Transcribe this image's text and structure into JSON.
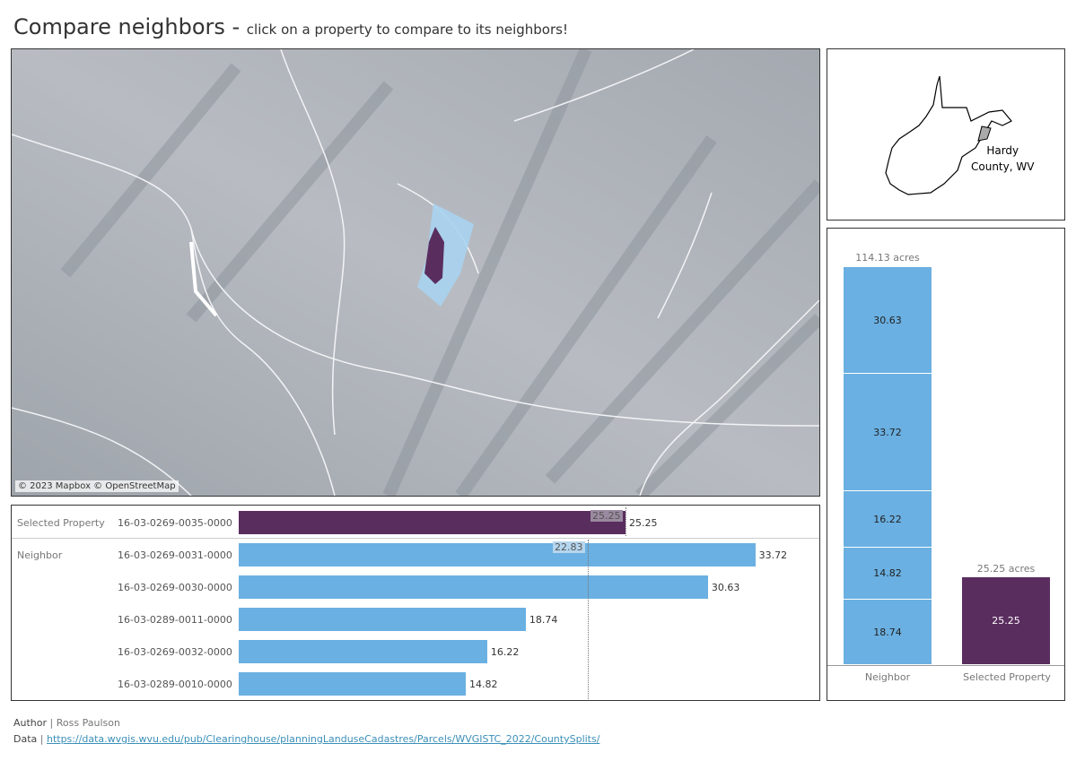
{
  "header": {
    "title": "Compare neighbors - ",
    "subtitle": "click on a property to compare to its neighbors!"
  },
  "map": {
    "attribution": "© 2023 Mapbox © OpenStreetMap",
    "selected_color": "#5a2d5f",
    "neighbor_color": "#a9d3ef"
  },
  "locator": {
    "label_line1": "Hardy",
    "label_line2": "County, WV"
  },
  "colors": {
    "selected": "#5a2d5f",
    "neighbor": "#6ab0e2"
  },
  "comparison": {
    "average_labels": {
      "selected": "25.25",
      "neighbor": "22.83"
    },
    "rows": [
      {
        "group": "Selected Property",
        "parcel": "16-03-0269-0035-0000",
        "acres": 25.25,
        "label": "25.25"
      },
      {
        "group": "Neighbor",
        "parcel": "16-03-0269-0031-0000",
        "acres": 33.72,
        "label": "33.72"
      },
      {
        "group": "",
        "parcel": "16-03-0269-0030-0000",
        "acres": 30.63,
        "label": "30.63"
      },
      {
        "group": "",
        "parcel": "16-03-0289-0011-0000",
        "acres": 18.74,
        "label": "18.74"
      },
      {
        "group": "",
        "parcel": "16-03-0269-0032-0000",
        "acres": 16.22,
        "label": "16.22"
      },
      {
        "group": "",
        "parcel": "16-03-0289-0010-0000",
        "acres": 14.82,
        "label": "14.82"
      }
    ]
  },
  "stacked": {
    "neighbor": {
      "total_label": "114.13 acres",
      "axis_label": "Neighbor",
      "segments": [
        {
          "value": 30.63,
          "label": "30.63"
        },
        {
          "value": 33.72,
          "label": "33.72"
        },
        {
          "value": 16.22,
          "label": "16.22"
        },
        {
          "value": 14.82,
          "label": "14.82"
        },
        {
          "value": 18.74,
          "label": "18.74"
        }
      ]
    },
    "selected": {
      "total_label": "25.25 acres",
      "axis_label": "Selected Property",
      "value": 25.25,
      "label": "25.25"
    }
  },
  "footer": {
    "author_key": "Author",
    "author": "Ross Paulson",
    "data_key": "Data",
    "data_url": "https://data.wvgis.wvu.edu/pub/Clearinghouse/planningLanduseCadastres/Parcels/WVGISTC_2022/CountySplits/"
  }
}
